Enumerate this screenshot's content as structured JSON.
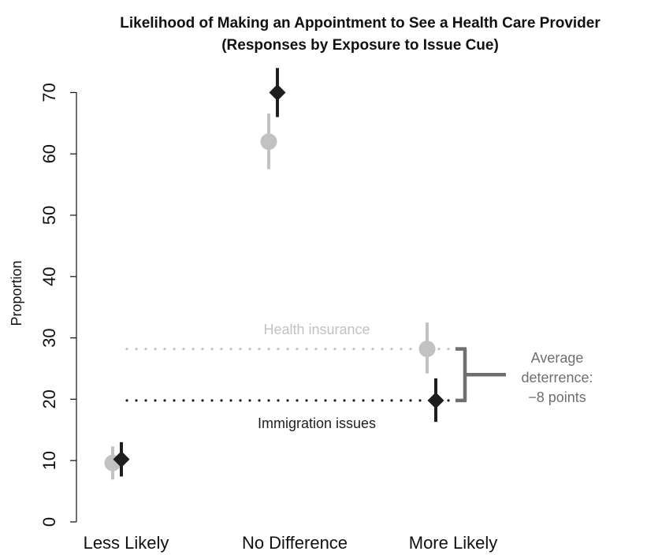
{
  "chart_data": {
    "type": "scatter",
    "title_line1": "Likelihood of Making an Appointment to See a Health Care Provider",
    "title_line2": "(Responses by Exposure to Issue Cue)",
    "ylabel": "Proportion",
    "categories": [
      "Less Likely",
      "No Difference",
      "More Likely"
    ],
    "ylim": [
      0,
      75
    ],
    "yticks": [
      "0",
      "10",
      "20",
      "30",
      "40",
      "50",
      "60",
      "70"
    ],
    "series": [
      {
        "name": "Health insurance",
        "marker": "circle",
        "color": "#c2c2c2",
        "values": [
          9.6,
          62.0,
          28.2
        ],
        "ci_low": [
          6.9,
          57.5,
          24.2
        ],
        "ci_high": [
          12.3,
          66.6,
          32.5
        ]
      },
      {
        "name": "Immigration issues",
        "marker": "diamond",
        "color": "#1e1e1e",
        "values": [
          10.2,
          70.0,
          19.8
        ],
        "ci_low": [
          7.4,
          66.0,
          16.3
        ],
        "ci_high": [
          13.0,
          74.0,
          23.4
        ]
      }
    ],
    "reference_lines": [
      {
        "series": "Health insurance",
        "value": 28.2,
        "style": "dotted"
      },
      {
        "series": "Immigration issues",
        "value": 19.8,
        "style": "dotted"
      }
    ],
    "annotation": {
      "line1": "Average",
      "line2": "deterrence:",
      "line3": "−8 points",
      "color": "#6f6f6f"
    },
    "grid": false,
    "legend": "none"
  }
}
